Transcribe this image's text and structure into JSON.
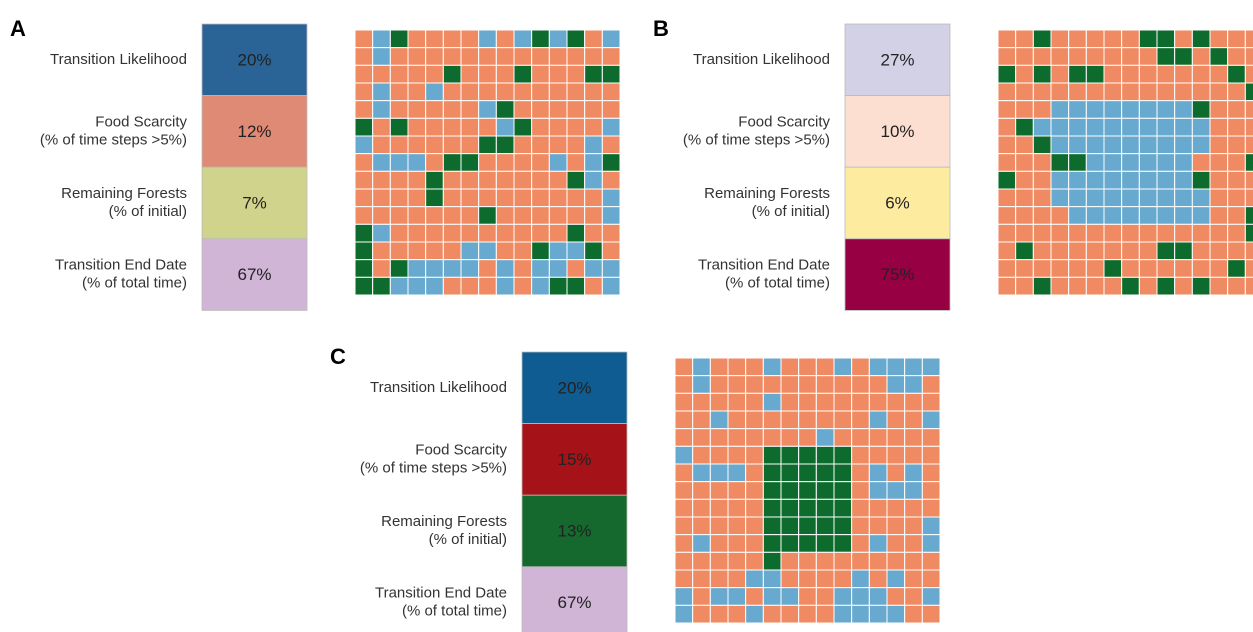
{
  "palette": {
    "o": "#ef8a62",
    "b": "#67a9cf",
    "g": "#0e6b2e"
  },
  "panels": [
    {
      "label": "A",
      "metrics": [
        {
          "lines": [
            "Transition Likelihood"
          ],
          "value": "20%",
          "color": "#2a6396"
        },
        {
          "lines": [
            "Food Scarcity",
            "(% of time steps >5%)"
          ],
          "value": "12%",
          "color": "#df8a74"
        },
        {
          "lines": [
            "Remaining Forests",
            "(% of initial)"
          ],
          "value": "7%",
          "color": "#cfd38b"
        },
        {
          "lines": [
            "Transition End Date",
            "(% of total time)"
          ],
          "value": "67%",
          "color": "#d1b5d6"
        }
      ],
      "grid": [
        "obgoooobobgbgob",
        "obooooooooooooo",
        "ooooogooogooogg",
        "obooboooooooooo",
        "obooooobgoooooo",
        "gogooooobgoooob",
        "booooooggoooobo",
        "obbboggoooobobg",
        "oooogooooooogbo",
        "oooogooooooooob",
        "ooooooogoooooob",
        "gboooooooooogoo",
        "gooooobboogbbgo",
        "gogbbbbobobbobb",
        "ggbbbooobobggob"
      ]
    },
    {
      "label": "B",
      "metrics": [
        {
          "lines": [
            "Transition Likelihood"
          ],
          "value": "27%",
          "color": "#d2d1e6"
        },
        {
          "lines": [
            "Food Scarcity",
            "(% of time steps >5%)"
          ],
          "value": "10%",
          "color": "#fcdfd0"
        },
        {
          "lines": [
            "Remaining Forests",
            "(% of initial)"
          ],
          "value": "6%",
          "color": "#fdeba0"
        },
        {
          "lines": [
            "Transition End Date",
            "(% of total time)"
          ],
          "value": "75%",
          "color": "#970043"
        }
      ],
      "grid": [
        "oogoooooggogooo",
        "oooooooooggogoo",
        "gogoggooooooogo",
        "oooooooooooooog",
        "ooobbbbbbbbgooo",
        "ogbbbbbbbbbbooo",
        "oogbbbbbbbbbooo",
        "oooggbbbbbbooog",
        "goobbbbbbbbgooo",
        "ooobbbbbbbbbooo",
        "oooobbbbbbbboog",
        "oooooooooooooog",
        "ogoooooooggoooo",
        "oooooogoooooogo",
        "oogoooogogogooo"
      ]
    },
    {
      "label": "C",
      "metrics": [
        {
          "lines": [
            "Transition Likelihood"
          ],
          "value": "20%",
          "color": "#0e5c91"
        },
        {
          "lines": [
            "Food Scarcity",
            "(% of time steps >5%)"
          ],
          "value": "15%",
          "color": "#a51218"
        },
        {
          "lines": [
            "Remaining Forests",
            "(% of initial)"
          ],
          "value": "13%",
          "color": "#16692e"
        },
        {
          "lines": [
            "Transition End Date",
            "(% of total time)"
          ],
          "value": "67%",
          "color": "#d1b5d6"
        }
      ],
      "grid": [
        "obooobooobobbbb",
        "oboooooooooobbo",
        "ooooobooooooooo",
        "oobooooooooboob",
        "ooooooooboooooo",
        "boooogggggooooo",
        "obbbogggggobobo",
        "ooooogggggobbbo",
        "ooooogggggooooo",
        "ooooogggggoooob",
        "obooogggggoboob",
        "ooooogooooooooo",
        "oooobbooooboboo",
        "bobbobboobbboob",
        "boooboooobbbboo"
      ]
    }
  ]
}
